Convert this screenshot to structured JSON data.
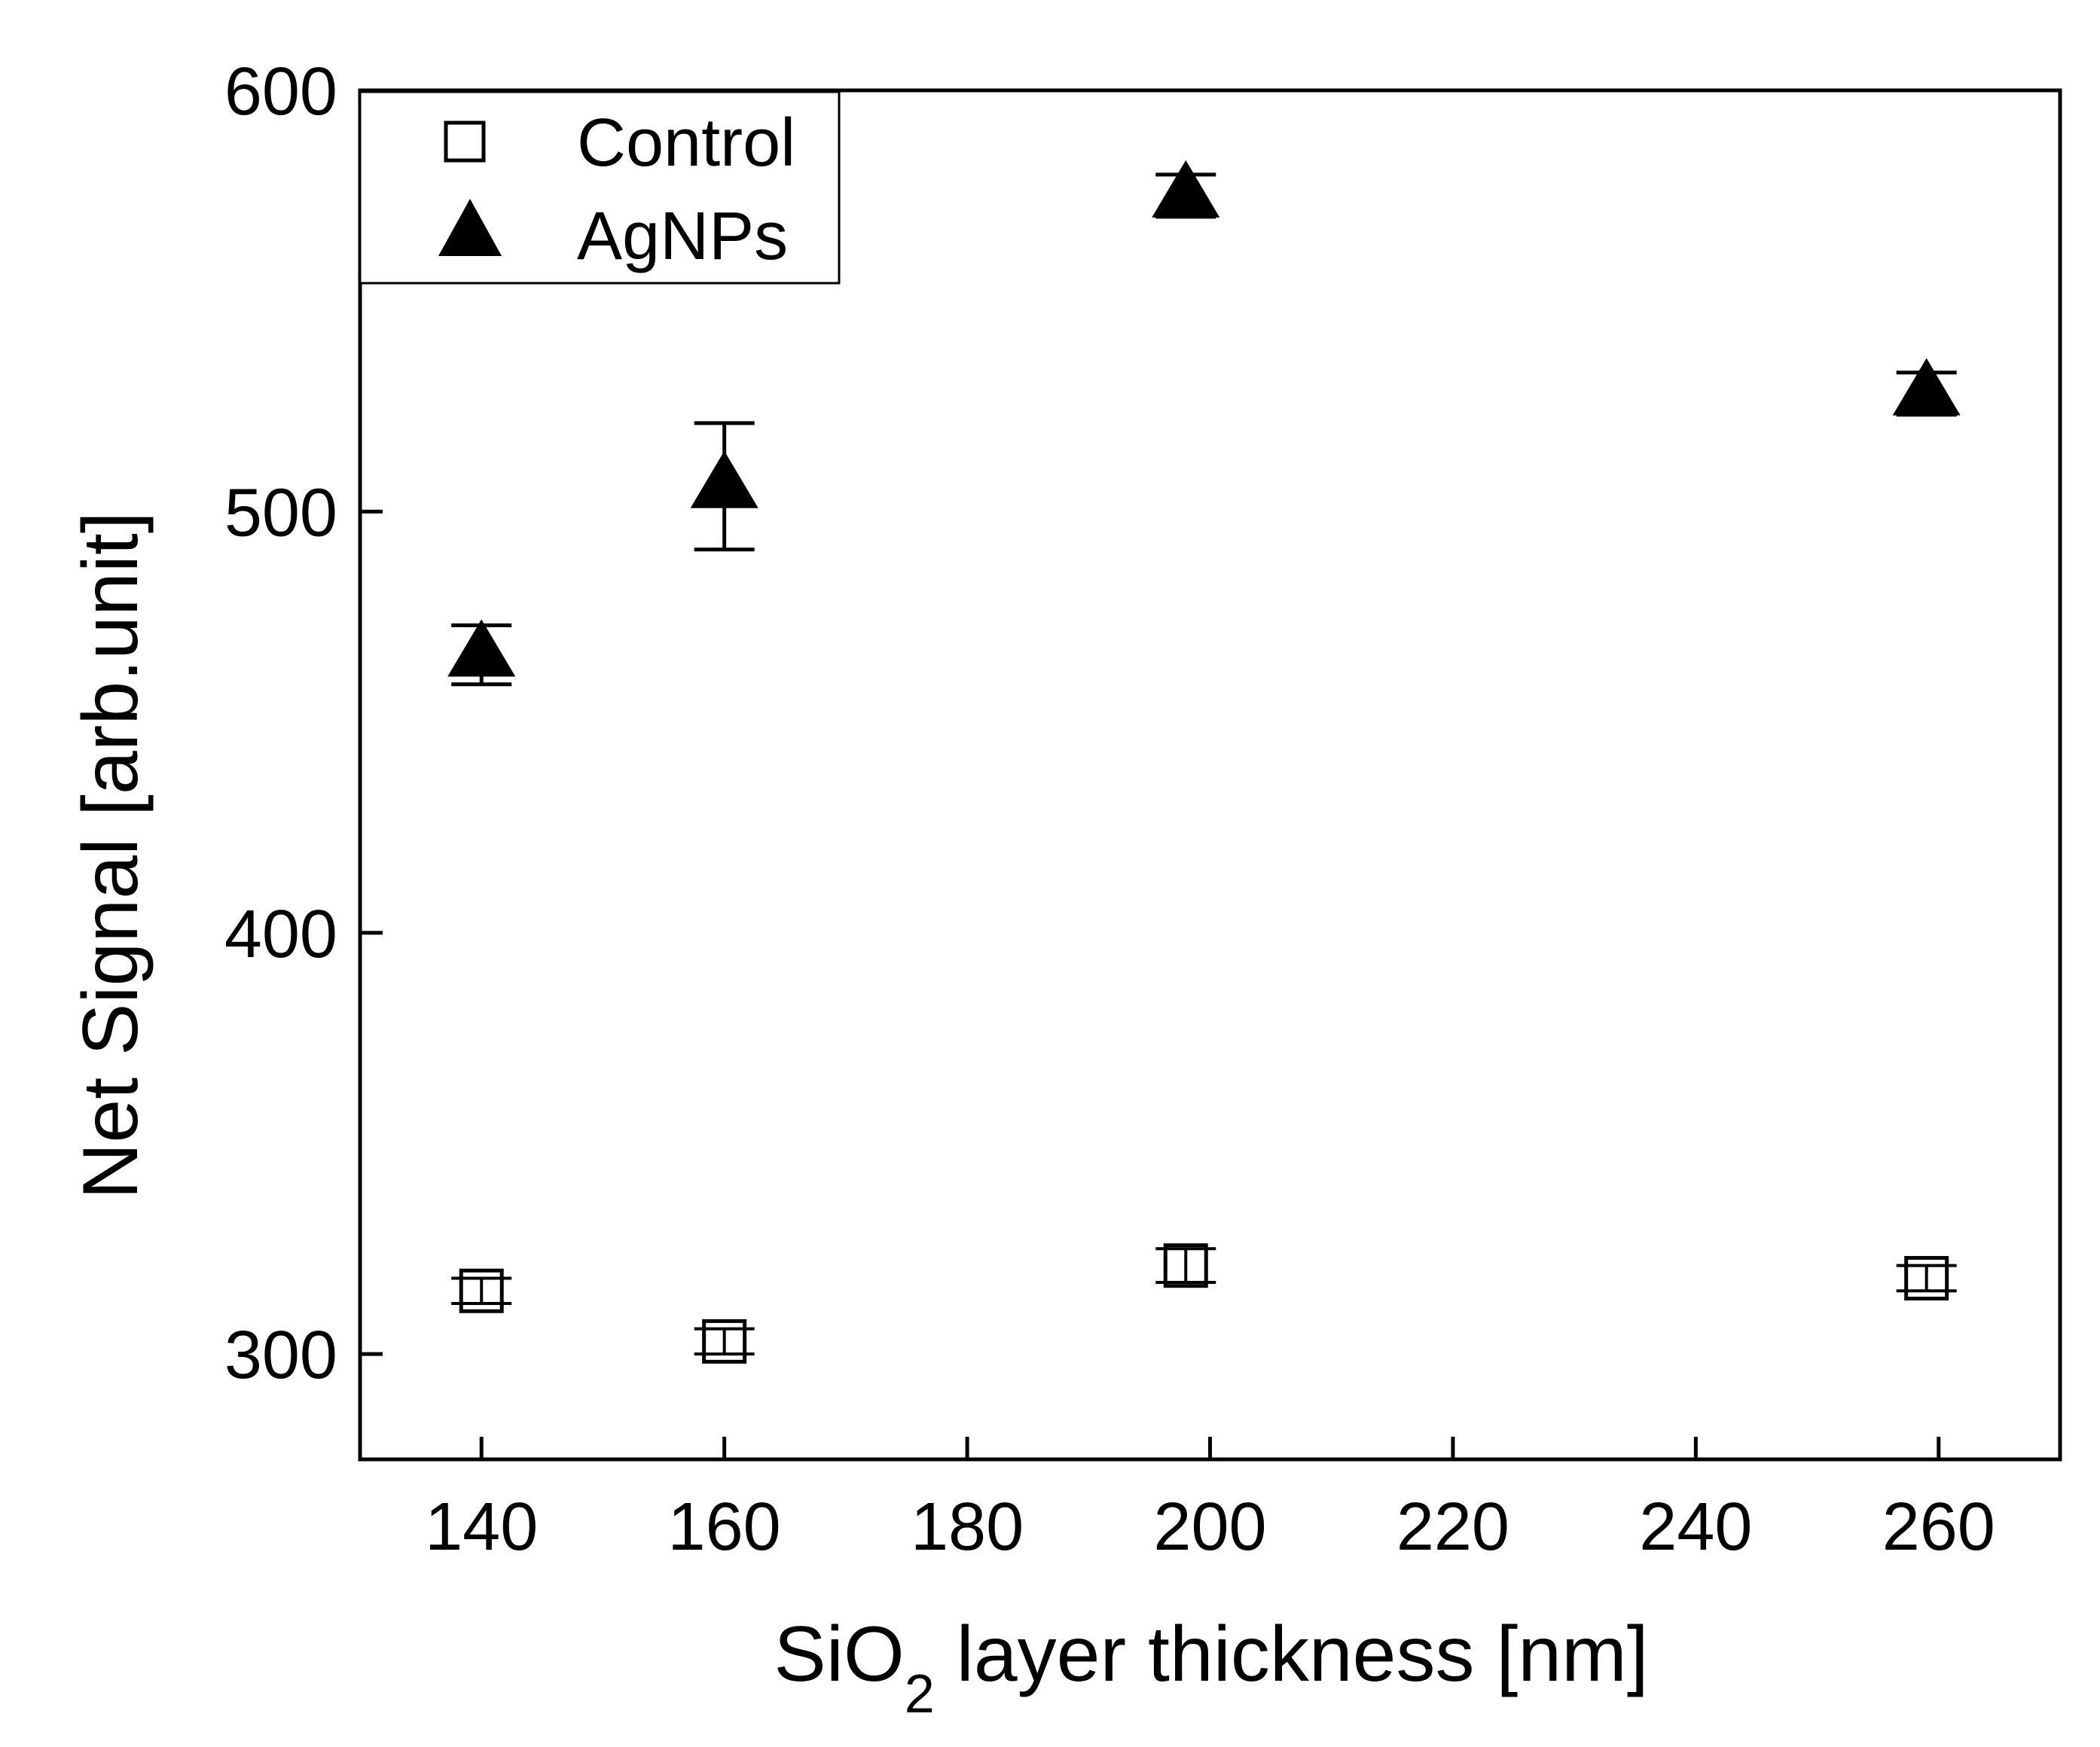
{
  "chart_data": {
    "type": "scatter",
    "title": "",
    "xlabel": "SiO2 layer thickness [nm]",
    "xlabel_parts": {
      "base": "SiO",
      "subscript": "2",
      "rest": " layer thickness [nm]"
    },
    "ylabel": "Net Signal [arb.unit]",
    "xlim": [
      130,
      270
    ],
    "ylim": [
      275,
      600
    ],
    "xticks": [
      140,
      160,
      180,
      200,
      220,
      240,
      260
    ],
    "yticks": [
      300,
      400,
      500,
      600
    ],
    "grid": false,
    "legend_position": "top-left",
    "series": [
      {
        "name": "Control",
        "marker": "open-square",
        "x": [
          140,
          160,
          198,
          259
        ],
        "y": [
          315,
          303,
          321,
          318
        ],
        "error": [
          3,
          3,
          4,
          3
        ]
      },
      {
        "name": "AgNPs",
        "marker": "filled-triangle",
        "x": [
          140,
          160,
          198,
          259
        ],
        "y": [
          466,
          506,
          575,
          528
        ],
        "error": [
          7,
          15,
          5,
          5
        ]
      }
    ]
  }
}
